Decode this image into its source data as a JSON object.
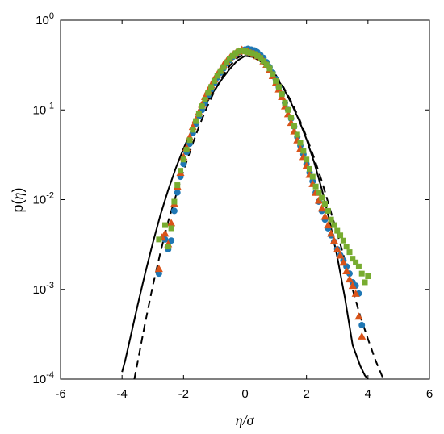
{
  "chart_data": {
    "type": "scatter",
    "title": "",
    "xlabel": "η/σ",
    "ylabel_prefix": "p(",
    "ylabel_var": "η",
    "ylabel_suffix": ")",
    "xlim": [
      -6,
      6
    ],
    "ylim": [
      0.0001,
      1
    ],
    "yscale": "log",
    "grid": false,
    "legend": "none",
    "x_ticks": [
      "-6",
      "-4",
      "-2",
      "0",
      "2",
      "4",
      "6"
    ],
    "x_tick_values": [
      -6,
      -4,
      -2,
      0,
      2,
      4,
      6
    ],
    "y_ticks": [
      {
        "base": "10",
        "exp": "-4",
        "value": 0.0001
      },
      {
        "base": "10",
        "exp": "-3",
        "value": 0.001
      },
      {
        "base": "10",
        "exp": "-2",
        "value": 0.01
      },
      {
        "base": "10",
        "exp": "-1",
        "value": 0.1
      },
      {
        "base": "10",
        "exp": "0",
        "value": 1
      }
    ],
    "curves": [
      {
        "style": "solid",
        "color": "#000000",
        "x": [
          -4.0,
          -3.9,
          -3.75,
          -3.5,
          -3.25,
          -3.0,
          -2.75,
          -2.5,
          -2.25,
          -2.0,
          -1.75,
          -1.5,
          -1.25,
          -1.0,
          -0.75,
          -0.5,
          -0.25,
          0.0,
          0.25,
          0.5,
          0.75,
          1.0,
          1.25,
          1.5,
          1.75,
          2.0,
          2.25,
          2.5,
          2.75,
          3.0,
          3.25,
          3.5,
          3.75,
          3.9,
          4.0
        ],
        "y": [
          0.00012,
          0.00016,
          0.00027,
          0.00065,
          0.0015,
          0.0033,
          0.0068,
          0.0128,
          0.0225,
          0.037,
          0.058,
          0.085,
          0.12,
          0.165,
          0.22,
          0.285,
          0.355,
          0.4,
          0.39,
          0.35,
          0.295,
          0.235,
          0.175,
          0.12,
          0.078,
          0.047,
          0.026,
          0.013,
          0.0058,
          0.0023,
          0.0008,
          0.00024,
          0.00014,
          0.00011,
          0.0001
        ]
      },
      {
        "style": "dashed",
        "color": "#000000",
        "x": [
          -3.6,
          -3.5,
          -3.25,
          -3.0,
          -2.75,
          -2.5,
          -2.25,
          -2.0,
          -1.75,
          -1.5,
          -1.25,
          -1.0,
          -0.75,
          -0.5,
          -0.25,
          0.0,
          0.25,
          0.5,
          0.75,
          1.0,
          1.25,
          1.5,
          1.75,
          2.0,
          2.25,
          2.5,
          2.75,
          3.0,
          3.25,
          3.5,
          3.75,
          4.0,
          4.25,
          4.5
        ],
        "y": [
          0.0001,
          0.00015,
          0.00042,
          0.0011,
          0.0026,
          0.0057,
          0.011,
          0.021,
          0.038,
          0.065,
          0.105,
          0.16,
          0.23,
          0.31,
          0.38,
          0.42,
          0.41,
          0.37,
          0.31,
          0.245,
          0.18,
          0.125,
          0.082,
          0.05,
          0.029,
          0.016,
          0.0082,
          0.0042,
          0.0021,
          0.001,
          0.0005,
          0.00028,
          0.00016,
          0.0001
        ]
      }
    ],
    "series": [
      {
        "marker": "circle",
        "color": "#1f77b4",
        "x": [
          -2.8,
          -2.6,
          -2.5,
          -2.4,
          -2.3,
          -2.2,
          -2.1,
          -2.0,
          -1.9,
          -1.8,
          -1.7,
          -1.6,
          -1.5,
          -1.4,
          -1.3,
          -1.2,
          -1.1,
          -1.0,
          -0.9,
          -0.8,
          -0.7,
          -0.6,
          -0.5,
          -0.4,
          -0.3,
          -0.2,
          -0.1,
          0.0,
          0.1,
          0.2,
          0.3,
          0.4,
          0.5,
          0.6,
          0.7,
          0.8,
          0.9,
          1.0,
          1.1,
          1.2,
          1.3,
          1.4,
          1.5,
          1.6,
          1.7,
          1.8,
          1.9,
          2.0,
          2.1,
          2.2,
          2.3,
          2.4,
          2.5,
          2.6,
          2.7,
          2.8,
          2.9,
          3.0,
          3.1,
          3.2,
          3.3,
          3.4,
          3.5,
          3.6,
          3.7,
          3.8
        ],
        "y": [
          0.0015,
          0.0036,
          0.0028,
          0.0035,
          0.0075,
          0.012,
          0.018,
          0.025,
          0.034,
          0.042,
          0.055,
          0.07,
          0.085,
          0.1,
          0.12,
          0.145,
          0.17,
          0.2,
          0.23,
          0.26,
          0.29,
          0.33,
          0.36,
          0.39,
          0.42,
          0.44,
          0.46,
          0.47,
          0.48,
          0.47,
          0.46,
          0.44,
          0.41,
          0.38,
          0.34,
          0.3,
          0.26,
          0.22,
          0.18,
          0.15,
          0.12,
          0.1,
          0.08,
          0.065,
          0.05,
          0.04,
          0.032,
          0.025,
          0.02,
          0.016,
          0.012,
          0.0095,
          0.0075,
          0.006,
          0.0048,
          0.004,
          0.0034,
          0.0028,
          0.0024,
          0.0021,
          0.0018,
          0.0015,
          0.0012,
          0.0011,
          0.0009,
          0.0004
        ]
      },
      {
        "marker": "triangle",
        "color": "#d95319",
        "x": [
          -2.8,
          -2.7,
          -2.6,
          -2.5,
          -2.4,
          -2.3,
          -2.2,
          -2.1,
          -2.0,
          -1.9,
          -1.8,
          -1.7,
          -1.6,
          -1.5,
          -1.4,
          -1.3,
          -1.2,
          -1.1,
          -1.0,
          -0.9,
          -0.8,
          -0.7,
          -0.6,
          -0.5,
          -0.4,
          -0.3,
          -0.2,
          -0.1,
          0.0,
          0.1,
          0.2,
          0.3,
          0.4,
          0.5,
          0.6,
          0.7,
          0.8,
          0.9,
          1.0,
          1.1,
          1.2,
          1.3,
          1.4,
          1.5,
          1.6,
          1.7,
          1.8,
          1.9,
          2.0,
          2.1,
          2.2,
          2.3,
          2.4,
          2.5,
          2.6,
          2.7,
          2.8,
          2.9,
          3.0,
          3.1,
          3.2,
          3.3,
          3.4,
          3.5,
          3.6,
          3.7,
          3.8
        ],
        "y": [
          0.0017,
          0.0038,
          0.0042,
          0.0032,
          0.0055,
          0.009,
          0.014,
          0.02,
          0.03,
          0.038,
          0.05,
          0.065,
          0.078,
          0.095,
          0.115,
          0.14,
          0.165,
          0.19,
          0.22,
          0.25,
          0.28,
          0.32,
          0.35,
          0.38,
          0.41,
          0.43,
          0.45,
          0.47,
          0.46,
          0.45,
          0.43,
          0.42,
          0.4,
          0.38,
          0.35,
          0.32,
          0.28,
          0.24,
          0.2,
          0.17,
          0.14,
          0.11,
          0.09,
          0.072,
          0.058,
          0.046,
          0.037,
          0.03,
          0.024,
          0.019,
          0.015,
          0.012,
          0.0098,
          0.008,
          0.0065,
          0.0052,
          0.0042,
          0.0035,
          0.0028,
          0.0024,
          0.002,
          0.0016,
          0.0013,
          0.0011,
          0.0009,
          0.0005,
          0.0003
        ]
      },
      {
        "marker": "square",
        "color": "#77ac30",
        "x": [
          -2.8,
          -2.6,
          -2.5,
          -2.4,
          -2.3,
          -2.2,
          -2.1,
          -2.0,
          -1.9,
          -1.8,
          -1.7,
          -1.6,
          -1.5,
          -1.4,
          -1.3,
          -1.2,
          -1.1,
          -1.0,
          -0.9,
          -0.8,
          -0.7,
          -0.6,
          -0.5,
          -0.4,
          -0.3,
          -0.2,
          -0.1,
          0.0,
          0.1,
          0.2,
          0.3,
          0.4,
          0.5,
          0.6,
          0.7,
          0.8,
          0.9,
          1.0,
          1.1,
          1.2,
          1.3,
          1.4,
          1.5,
          1.6,
          1.7,
          1.8,
          1.9,
          2.0,
          2.1,
          2.2,
          2.3,
          2.4,
          2.5,
          2.6,
          2.7,
          2.8,
          2.9,
          3.0,
          3.1,
          3.2,
          3.3,
          3.4,
          3.5,
          3.6,
          3.7,
          3.8,
          3.9,
          4.0
        ],
        "y": [
          0.0036,
          0.0052,
          0.003,
          0.0048,
          0.0095,
          0.0145,
          0.021,
          0.028,
          0.036,
          0.046,
          0.06,
          0.075,
          0.09,
          0.11,
          0.13,
          0.155,
          0.18,
          0.21,
          0.24,
          0.27,
          0.3,
          0.34,
          0.37,
          0.4,
          0.43,
          0.45,
          0.46,
          0.45,
          0.44,
          0.43,
          0.42,
          0.4,
          0.38,
          0.35,
          0.32,
          0.29,
          0.25,
          0.21,
          0.18,
          0.15,
          0.12,
          0.1,
          0.082,
          0.066,
          0.053,
          0.043,
          0.035,
          0.028,
          0.022,
          0.018,
          0.014,
          0.012,
          0.0105,
          0.009,
          0.0075,
          0.006,
          0.0052,
          0.0045,
          0.004,
          0.0035,
          0.003,
          0.0026,
          0.0022,
          0.002,
          0.0018,
          0.0015,
          0.0012,
          0.0014
        ]
      }
    ]
  }
}
